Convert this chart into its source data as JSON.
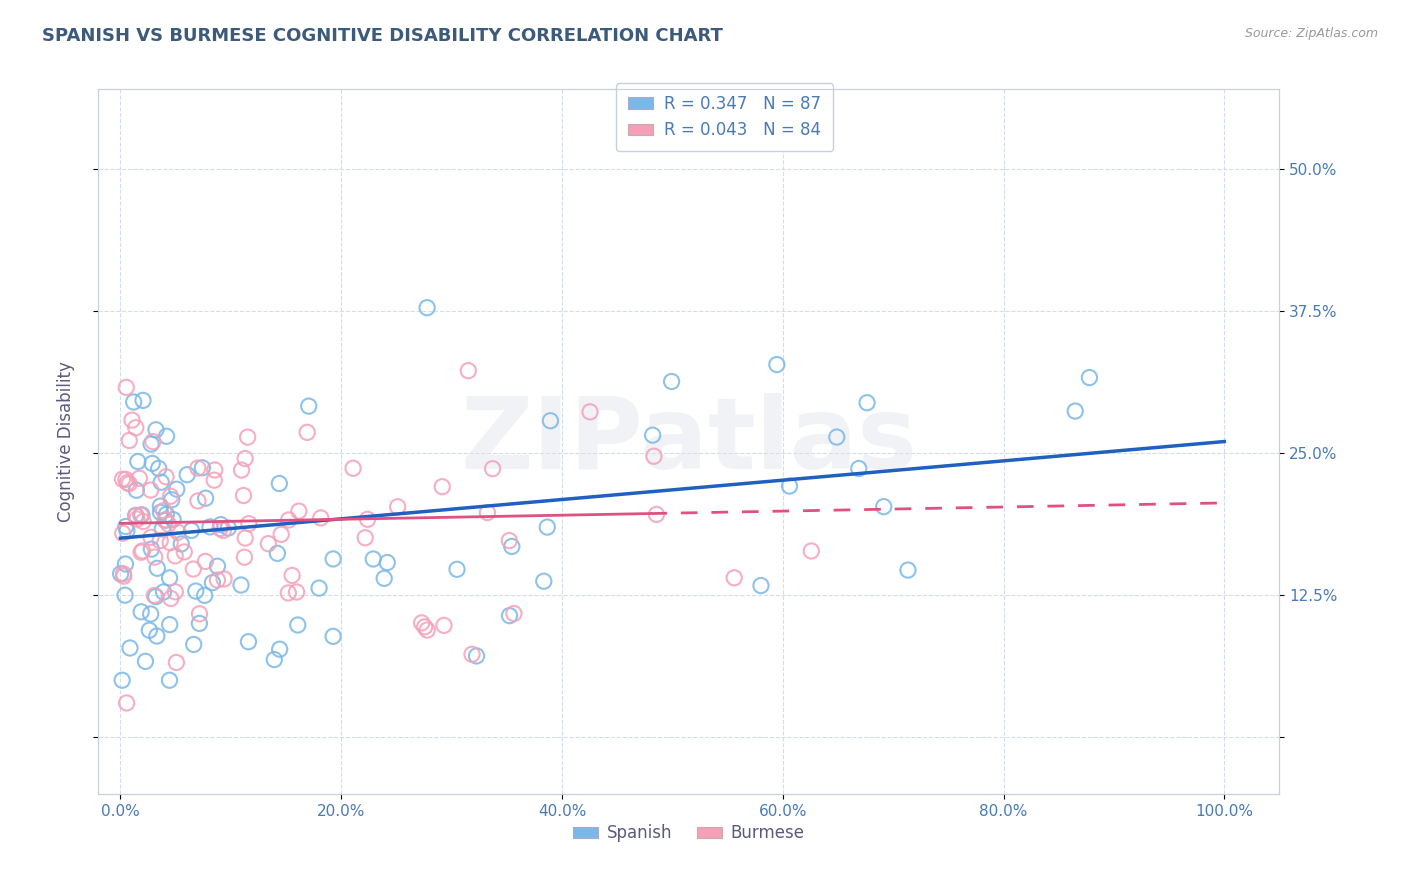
{
  "title": "SPANISH VS BURMESE COGNITIVE DISABILITY CORRELATION CHART",
  "source": "Source: ZipAtlas.com",
  "ylabel": "Cognitive Disability",
  "spanish_R": 0.347,
  "spanish_N": 87,
  "burmese_R": 0.043,
  "burmese_N": 84,
  "spanish_color": "#7ab8e8",
  "burmese_color": "#f4a0b8",
  "trend_spanish_color": "#2060c0",
  "trend_burmese_color": "#e05080",
  "title_color": "#3c5a7a",
  "axis_label_color": "#5a5a7a",
  "tick_label_color": "#4a7ab5",
  "grid_color": "#d0d8e8",
  "background_color": "#ffffff",
  "watermark": "ZIPatlas",
  "y_ticks": [
    0,
    12.5,
    25.0,
    37.5,
    50.0
  ],
  "x_ticks": [
    0,
    20,
    40,
    60,
    80,
    100
  ]
}
